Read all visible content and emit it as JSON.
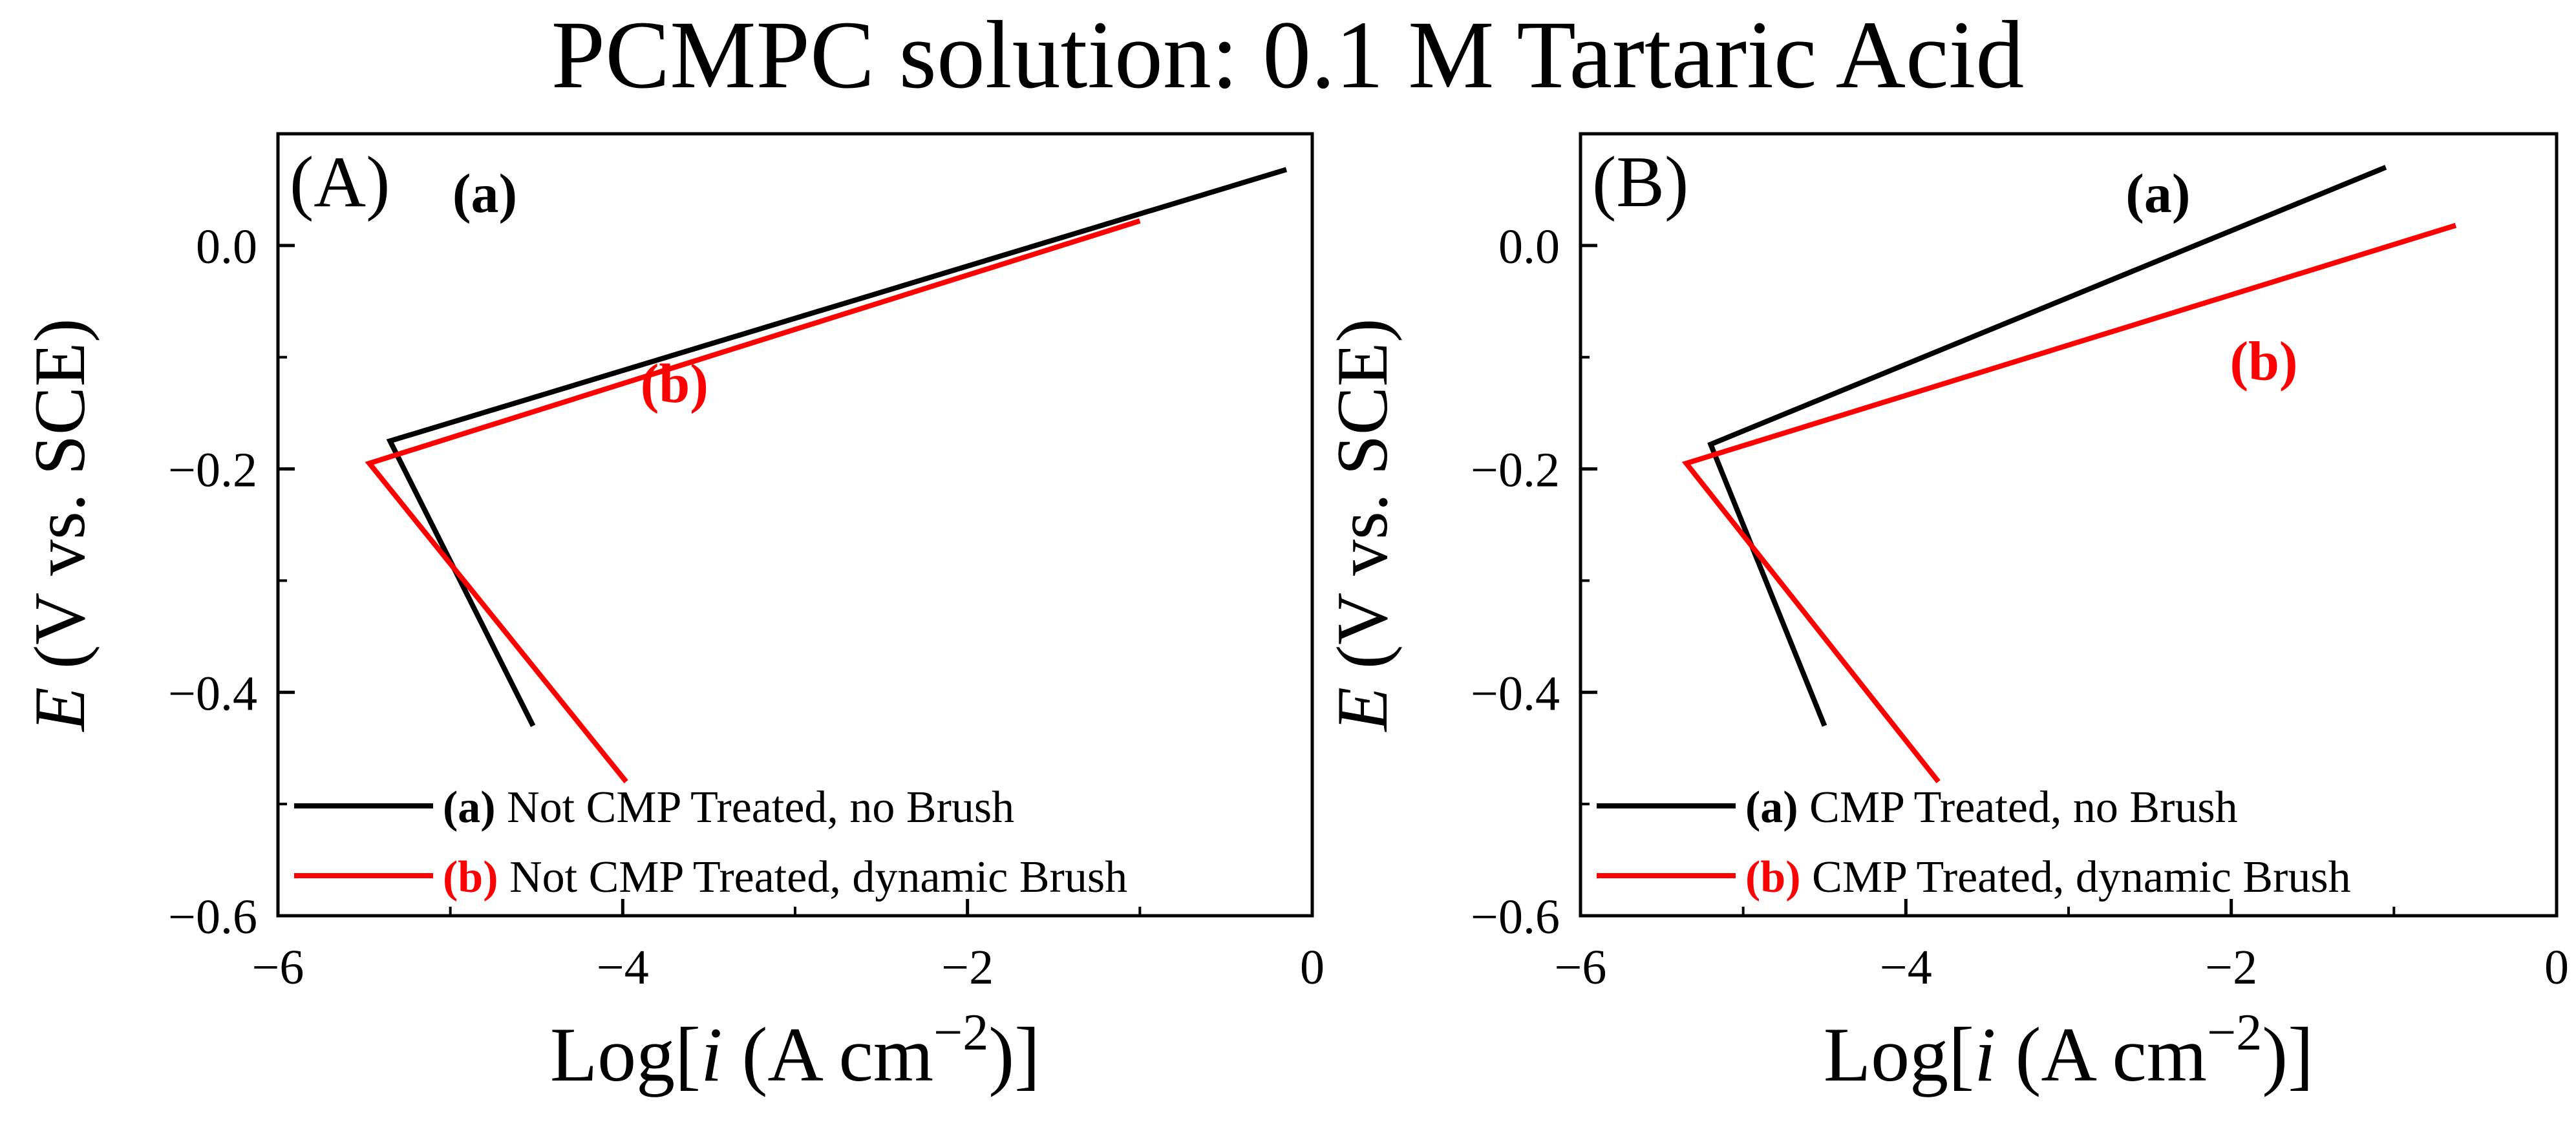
{
  "figure": {
    "title": "PCMPC solution: 0.1 M Tartaric Acid"
  },
  "chart_data": [
    {
      "type": "line",
      "panel_label": "(A)",
      "xlabel": {
        "prefix": "Log[",
        "italic": "i",
        "suffix": " (A cm",
        "sup": "−2",
        "close": ")]"
      },
      "ylabel": {
        "italic": "E",
        "rest": " (V vs. SCE)"
      },
      "xlim": [
        -6,
        0
      ],
      "ylim": [
        -0.6,
        0.1
      ],
      "x_ticks": [
        -6,
        -4,
        -2,
        0
      ],
      "x_tick_labels": [
        "−6",
        "−4",
        "−2",
        "0"
      ],
      "y_ticks": [
        -0.6,
        -0.4,
        -0.2,
        0.0
      ],
      "y_tick_labels": [
        "−0.6",
        "−0.4",
        "−0.2",
        "0.0"
      ],
      "grid": false,
      "legend_position": "bottom-left",
      "series": [
        {
          "id": "a",
          "tag": "(a)",
          "name": "Not CMP Treated, no Brush",
          "color": "#000000",
          "annotation": {
            "text": "(a)",
            "x": -4.8,
            "y": 0.03
          },
          "x": [
            -4.52,
            -5.35,
            -0.15
          ],
          "y": [
            -0.43,
            -0.175,
            0.068
          ]
        },
        {
          "id": "b",
          "tag": "(b)",
          "name": "Not CMP Treated, dynamic Brush",
          "color": "#ff0000",
          "annotation": {
            "text": "(b)",
            "x": -3.7,
            "y": -0.14
          },
          "x": [
            -3.98,
            -5.47,
            -1.0
          ],
          "y": [
            -0.48,
            -0.195,
            0.022
          ]
        }
      ]
    },
    {
      "type": "line",
      "panel_label": "(B)",
      "xlabel": {
        "prefix": "Log[",
        "italic": "i",
        "suffix": " (A cm",
        "sup": "−2",
        "close": ")]"
      },
      "ylabel": {
        "italic": "E",
        "rest": " (V vs. SCE)"
      },
      "xlim": [
        -6,
        0
      ],
      "ylim": [
        -0.6,
        0.1
      ],
      "x_ticks": [
        -6,
        -4,
        -2,
        0
      ],
      "x_tick_labels": [
        "−6",
        "−4",
        "−2",
        "0"
      ],
      "y_ticks": [
        -0.6,
        -0.4,
        -0.2,
        0.0
      ],
      "y_tick_labels": [
        "−0.6",
        "−0.4",
        "−0.2",
        "0.0"
      ],
      "grid": false,
      "legend_position": "bottom-left",
      "series": [
        {
          "id": "a",
          "tag": "(a)",
          "name": "CMP Treated, no Brush",
          "color": "#000000",
          "annotation": {
            "text": "(a)",
            "x": -2.45,
            "y": 0.03
          },
          "x": [
            -4.5,
            -5.2,
            -1.05
          ],
          "y": [
            -0.43,
            -0.178,
            0.07
          ]
        },
        {
          "id": "b",
          "tag": "(b)",
          "name": "CMP Treated, dynamic Brush",
          "color": "#ff0000",
          "annotation": {
            "text": "(b)",
            "x": -1.8,
            "y": -0.12
          },
          "x": [
            -3.8,
            -5.35,
            -0.62
          ],
          "y": [
            -0.48,
            -0.195,
            0.018
          ]
        }
      ]
    }
  ]
}
